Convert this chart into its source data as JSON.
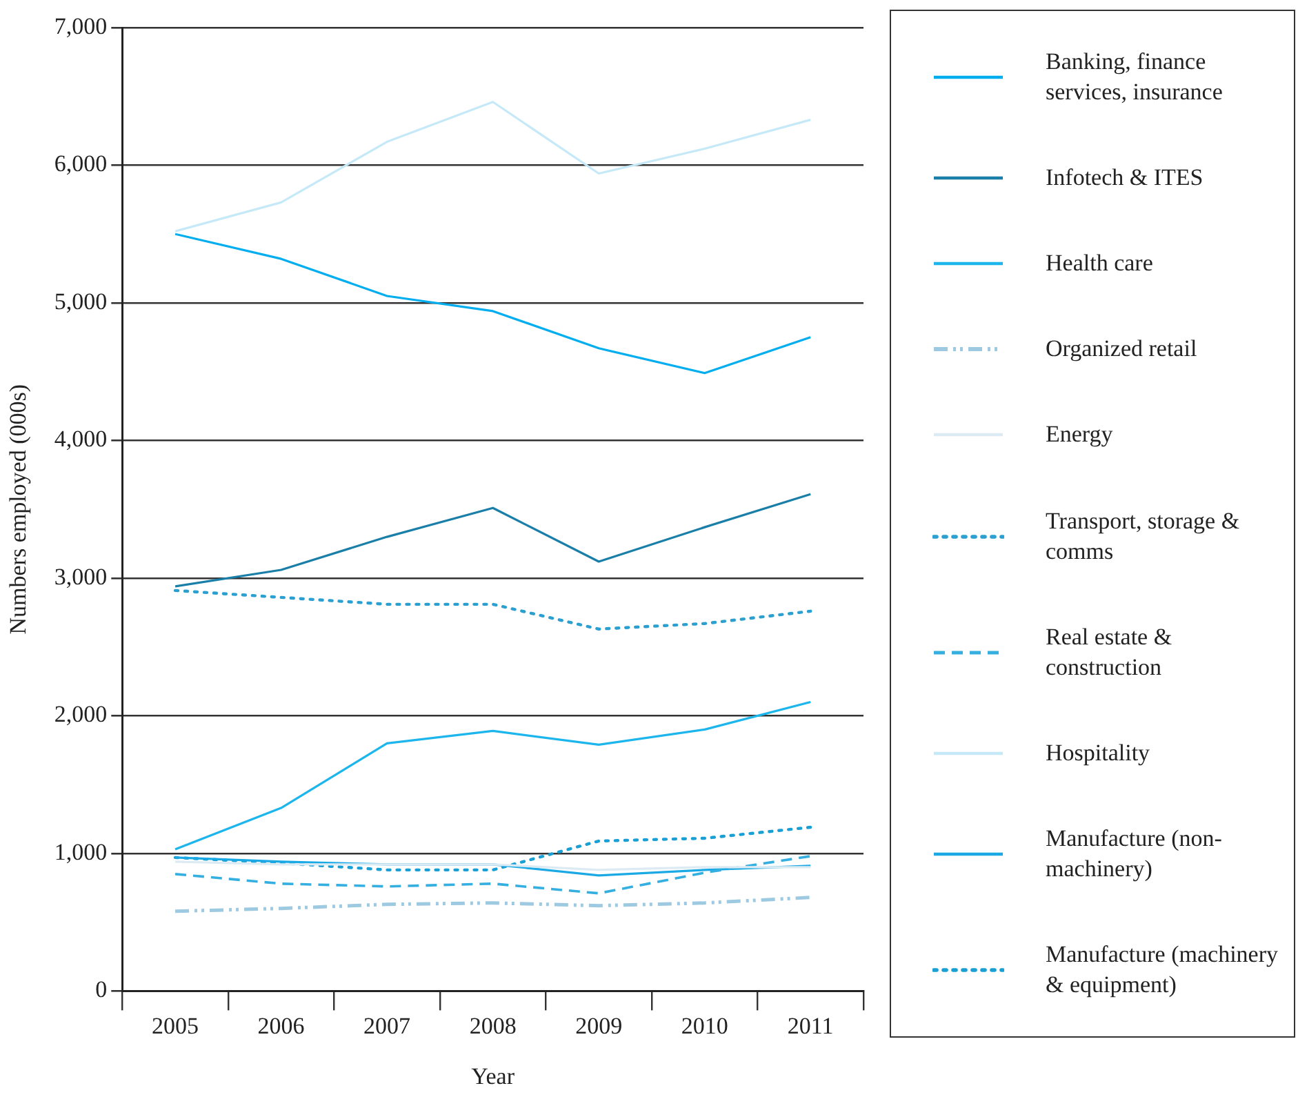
{
  "chart_data": {
    "type": "line",
    "xlabel": "Year",
    "ylabel": "Numbers employed (000s)",
    "categories": [
      "2005",
      "2006",
      "2007",
      "2008",
      "2009",
      "2010",
      "2011"
    ],
    "ylim": [
      0,
      7000
    ],
    "yticks": [
      {
        "value": 0,
        "label": "0"
      },
      {
        "value": 1000,
        "label": "1,000"
      },
      {
        "value": 2000,
        "label": "2,000"
      },
      {
        "value": 3000,
        "label": "3,000"
      },
      {
        "value": 4000,
        "label": "4,000"
      },
      {
        "value": 5000,
        "label": "5,000"
      },
      {
        "value": 6000,
        "label": "6,000"
      },
      {
        "value": 7000,
        "label": "7,000"
      }
    ],
    "grid": "y",
    "legend": "right",
    "marker": "none",
    "series": [
      {
        "name": "Banking, finance services, insurance",
        "color": "#00aeef",
        "line_style": "solid",
        "values": [
          5500,
          5320,
          5050,
          4940,
          4670,
          4490,
          4750
        ]
      },
      {
        "name": "Infotech & ITES",
        "color": "#1a7fa8",
        "line_style": "solid",
        "values": [
          2940,
          3060,
          3300,
          3510,
          3120,
          3370,
          3610
        ]
      },
      {
        "name": "Health care",
        "color": "#1cb5ec",
        "line_style": "solid",
        "values": [
          1030,
          1330,
          1800,
          1890,
          1790,
          1900,
          2100
        ]
      },
      {
        "name": "Organized retail",
        "color": "#9ecae1",
        "line_style": "dashdot",
        "values": [
          580,
          600,
          630,
          640,
          620,
          640,
          680
        ]
      },
      {
        "name": "Energy",
        "color": "#dcebf3",
        "line_style": "solid",
        "values": [
          940,
          920,
          920,
          920,
          880,
          900,
          900
        ]
      },
      {
        "name": "Transport, storage & comms",
        "color": "#2a9fd0",
        "line_style": "dotted",
        "values": [
          2910,
          2860,
          2810,
          2810,
          2630,
          2670,
          2760
        ]
      },
      {
        "name": "Real estate & construction",
        "color": "#35aee0",
        "line_style": "dashed",
        "values": [
          850,
          780,
          760,
          780,
          710,
          860,
          980
        ]
      },
      {
        "name": "Hospitality",
        "color": "#c6e9f8",
        "line_style": "solid",
        "values": [
          5520,
          5730,
          6170,
          6460,
          5940,
          6120,
          6330
        ]
      },
      {
        "name": "Manufacture (non-machinery)",
        "color": "#1aa9e4",
        "line_style": "solid",
        "values": [
          970,
          940,
          920,
          920,
          840,
          880,
          910
        ]
      },
      {
        "name": "Manufacture (machinery & equipment)",
        "color": "#1a9fd4",
        "line_style": "dotted",
        "values": [
          970,
          930,
          880,
          880,
          1090,
          1110,
          1190
        ]
      }
    ]
  }
}
